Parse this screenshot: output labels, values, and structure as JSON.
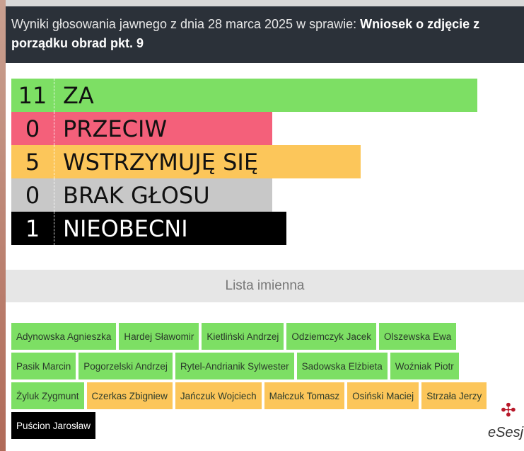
{
  "header": {
    "prefix": "Wyniki głosowania jawnego z dnia 28 marca 2025 w sprawie: ",
    "subject": "Wniosek o zdjęcie z porządku obrad pkt. 9"
  },
  "results": [
    {
      "count": "11",
      "label": "ZA",
      "color": "#7ddf64",
      "text": "#111111",
      "fill_pct": 100
    },
    {
      "count": "0",
      "label": "PRZECIW",
      "color": "#f4607a",
      "text": "#111111",
      "fill_pct": 56
    },
    {
      "count": "5",
      "label": "WSTRZYMUJĘ SIĘ",
      "color": "#fcc65a",
      "text": "#111111",
      "fill_pct": 75
    },
    {
      "count": "0",
      "label": "BRAK GŁOSU",
      "color": "#c8c8c8",
      "text": "#111111",
      "fill_pct": 56
    },
    {
      "count": "1",
      "label": "NIEOBECNI",
      "color": "#000000",
      "text": "#ffffff",
      "fill_pct": 59
    }
  ],
  "list_title": "Lista imienna",
  "colors": {
    "za": "#7ddf64",
    "wstrzymuje": "#fcc65a",
    "nieobecni": "#000000"
  },
  "names": [
    {
      "name": "Adynowska Agnieszka",
      "vote": "za"
    },
    {
      "name": "Hardej Sławomir",
      "vote": "za"
    },
    {
      "name": "Kietliński Andrzej",
      "vote": "za"
    },
    {
      "name": "Odziemczyk Jacek",
      "vote": "za"
    },
    {
      "name": "Olszewska Ewa",
      "vote": "za"
    },
    {
      "name": "Pasik Marcin",
      "vote": "za"
    },
    {
      "name": "Pogorzelski Andrzej",
      "vote": "za"
    },
    {
      "name": "Rytel-Andrianik Sylwester",
      "vote": "za"
    },
    {
      "name": "Sadowska Elżbieta",
      "vote": "za"
    },
    {
      "name": "Woźniak Piotr",
      "vote": "za"
    },
    {
      "name": "Żyluk Zygmunt",
      "vote": "za"
    },
    {
      "name": "Czerkas Zbigniew",
      "vote": "wstrzymuje"
    },
    {
      "name": "Jańczuk Wojciech",
      "vote": "wstrzymuje"
    },
    {
      "name": "Małczuk Tomasz",
      "vote": "wstrzymuje"
    },
    {
      "name": "Osiński Maciej",
      "vote": "wstrzymuje"
    },
    {
      "name": "Strzała Jerzy",
      "vote": "wstrzymuje"
    },
    {
      "name": "Puścion Jarosław",
      "vote": "nieobecni"
    }
  ],
  "logo": "eSesja"
}
